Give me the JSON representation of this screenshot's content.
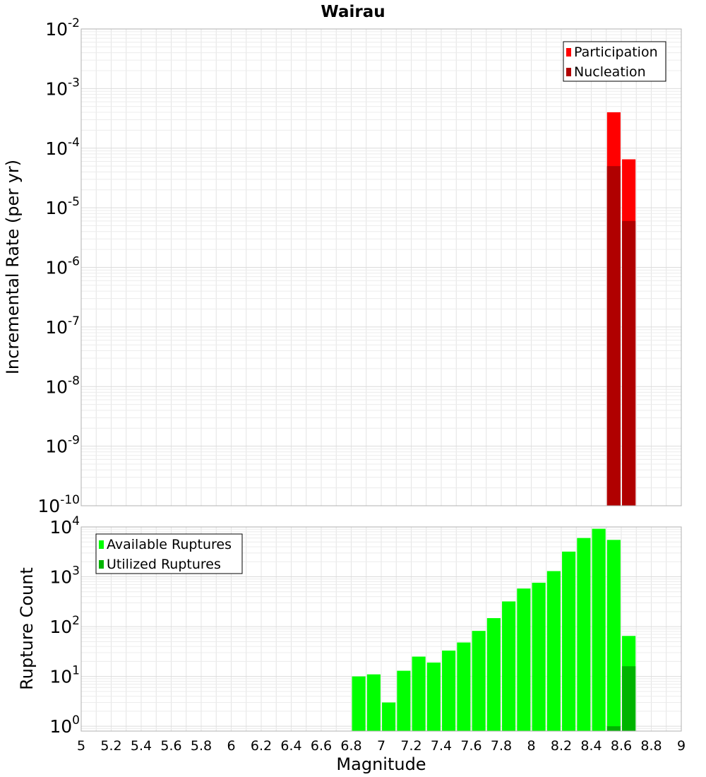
{
  "chart_data": [
    {
      "type": "bar",
      "title": "Wairau",
      "xlabel": "",
      "ylabel": "Incremental Rate (per yr)",
      "xlim": [
        5,
        9
      ],
      "ylim": [
        1e-10,
        0.01
      ],
      "y_scale": "log",
      "grid": true,
      "legend_placement": "top-right",
      "bar_width": 0.09,
      "legend": [
        "Participation",
        "Nucleation"
      ],
      "series": [
        {
          "name": "Participation",
          "color": "#ff0000",
          "x": [
            8.55,
            8.65
          ],
          "values": [
            0.0004,
            6.5e-05
          ]
        },
        {
          "name": "Nucleation",
          "color": "#b00000",
          "x": [
            8.55,
            8.65
          ],
          "values": [
            5e-05,
            6e-06
          ]
        }
      ],
      "y_ticks": [
        {
          "base": "10",
          "exp": "-10",
          "value": 1e-10
        },
        {
          "base": "10",
          "exp": "-9",
          "value": 1e-09
        },
        {
          "base": "10",
          "exp": "-8",
          "value": 1e-08
        },
        {
          "base": "10",
          "exp": "-7",
          "value": 1e-07
        },
        {
          "base": "10",
          "exp": "-6",
          "value": 1e-06
        },
        {
          "base": "10",
          "exp": "-5",
          "value": 1e-05
        },
        {
          "base": "10",
          "exp": "-4",
          "value": 0.0001
        },
        {
          "base": "10",
          "exp": "-3",
          "value": 0.001
        },
        {
          "base": "10",
          "exp": "-2",
          "value": 0.01
        }
      ]
    },
    {
      "type": "bar",
      "xlabel": "Magnitude",
      "ylabel": "Rupture Count",
      "xlim": [
        5,
        9
      ],
      "ylim": [
        0.8,
        10000
      ],
      "y_scale": "log",
      "grid": true,
      "legend_placement": "top-left",
      "bar_width": 0.09,
      "legend": [
        "Available Ruptures",
        "Utilized Ruptures"
      ],
      "series": [
        {
          "name": "Available Ruptures",
          "color": "#00ff00",
          "x": [
            6.85,
            6.95,
            7.05,
            7.15,
            7.25,
            7.35,
            7.45,
            7.55,
            7.65,
            7.75,
            7.85,
            7.95,
            8.05,
            8.15,
            8.25,
            8.35,
            8.45,
            8.55,
            8.65
          ],
          "values": [
            10,
            11,
            3,
            13,
            25,
            19,
            33,
            48,
            82,
            148,
            320,
            580,
            760,
            1300,
            3200,
            6000,
            9200,
            5500,
            65
          ]
        },
        {
          "name": "Utilized Ruptures",
          "color": "#00b400",
          "x": [
            8.55,
            8.65
          ],
          "values": [
            1,
            16
          ]
        }
      ],
      "x_ticks": [
        "5",
        "5.2",
        "5.4",
        "5.6",
        "5.8",
        "6",
        "6.2",
        "6.4",
        "6.6",
        "6.8",
        "7",
        "7.2",
        "7.4",
        "7.6",
        "7.8",
        "8",
        "8.2",
        "8.4",
        "8.6",
        "8.8",
        "9"
      ],
      "y_ticks": [
        {
          "base": "10",
          "exp": "0",
          "value": 1
        },
        {
          "base": "10",
          "exp": "1",
          "value": 10
        },
        {
          "base": "10",
          "exp": "2",
          "value": 100
        },
        {
          "base": "10",
          "exp": "3",
          "value": 1000
        },
        {
          "base": "10",
          "exp": "4",
          "value": 10000
        }
      ]
    }
  ]
}
